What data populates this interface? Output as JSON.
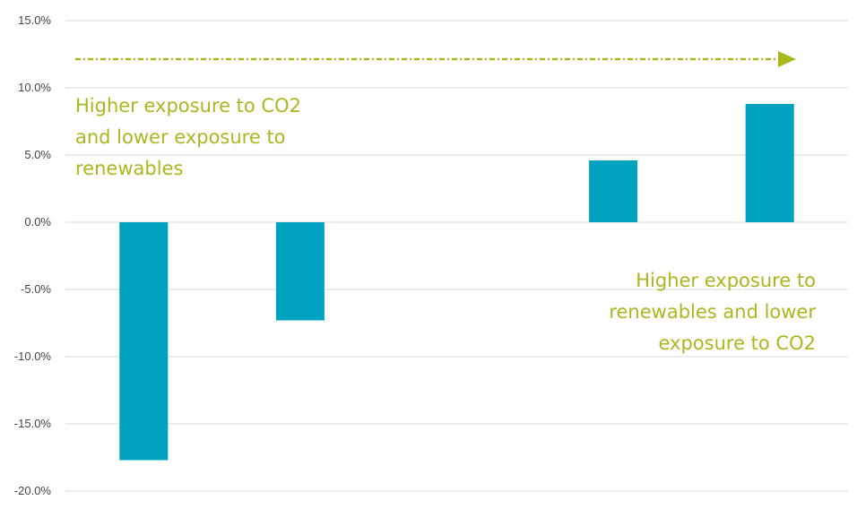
{
  "chart_data": {
    "type": "bar",
    "title": "",
    "xlabel": "",
    "ylabel": "",
    "ylim": [
      -20,
      15
    ],
    "yticks": [
      "15.0%",
      "10.0%",
      "5.0%",
      "0.0%",
      "-5.0%",
      "-10.0%",
      "-15.0%",
      "-20.0%"
    ],
    "grid": true,
    "categories": [
      "",
      "",
      "",
      "",
      ""
    ],
    "values": [
      -17.7,
      -7.3,
      null,
      4.6,
      8.8
    ],
    "colors": {
      "bar": "#00a3bf",
      "annotation": "#a9b81f",
      "grid": "#d9d9d9",
      "tick_text": "#444444"
    },
    "annotations": {
      "left": [
        "Higher exposure to CO2",
        "and lower exposure to",
        "renewables"
      ],
      "right": [
        "Higher exposure to",
        "renewables and lower",
        "exposure to CO2"
      ],
      "arrow": "dotted arrow pointing right"
    }
  }
}
